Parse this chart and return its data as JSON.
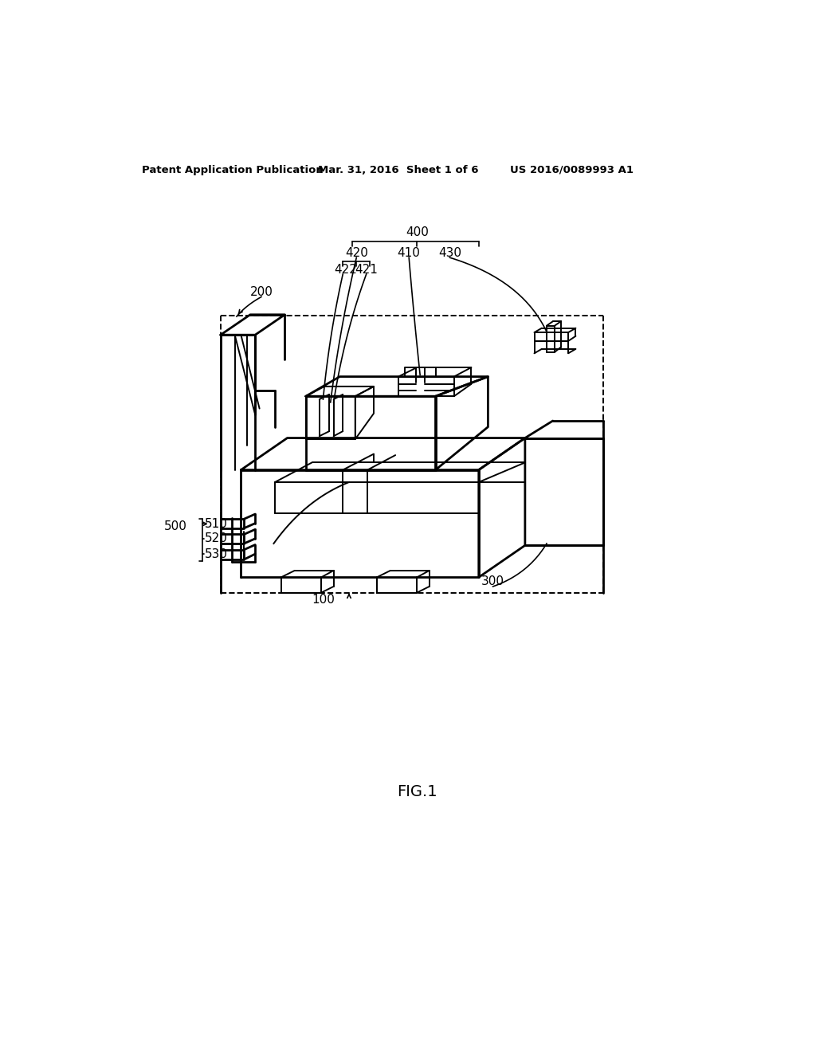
{
  "background_color": "#ffffff",
  "header_left": "Patent Application Publication",
  "header_center": "Mar. 31, 2016  Sheet 1 of 6",
  "header_right": "US 2016/0089993 A1",
  "figure_label": "FIG.1",
  "line_color": "#000000",
  "lw_main": 2.0,
  "lw_thin": 1.4,
  "lw_dash": 1.4,
  "label_fs": 11,
  "header_fs": 9.5
}
